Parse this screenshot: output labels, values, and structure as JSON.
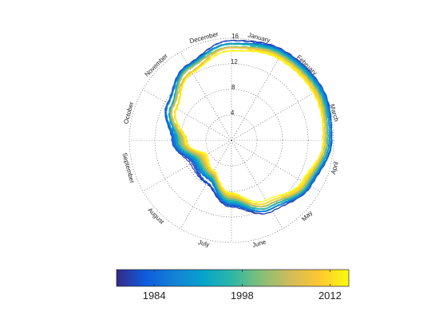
{
  "chart_data": {
    "type": "line",
    "subtype": "polar",
    "title": "",
    "radial_ticks": [
      4,
      8,
      12,
      16
    ],
    "radial_range": [
      0,
      16
    ],
    "months": [
      "January",
      "February",
      "March",
      "April",
      "May",
      "June",
      "July",
      "August",
      "September",
      "October",
      "November",
      "December"
    ],
    "angular_direction": "clockwise",
    "zero_angle": "top",
    "grid": true,
    "colormap": [
      "#352a87",
      "#0f5cdd",
      "#1481d6",
      "#06a4ca",
      "#2eb7a4",
      "#87bf77",
      "#d1bb59",
      "#fec832",
      "#f9fb0e"
    ],
    "colorbar": {
      "position": "bottom",
      "range": [
        1978,
        2015
      ],
      "ticks": [
        1984,
        1998,
        2012
      ]
    },
    "series_range": {
      "first_year": 1979,
      "last_year": 2015
    },
    "envelope_first_year": [
      15.5,
      16.2,
      16.4,
      15.8,
      14.3,
      12.7,
      10.3,
      7.6,
      7.2,
      9.3,
      11.6,
      13.8
    ],
    "envelope_last_year": [
      14.1,
      14.8,
      14.9,
      14.3,
      12.9,
      11.0,
      8.3,
      5.5,
      4.6,
      7.0,
      9.9,
      12.3
    ]
  }
}
